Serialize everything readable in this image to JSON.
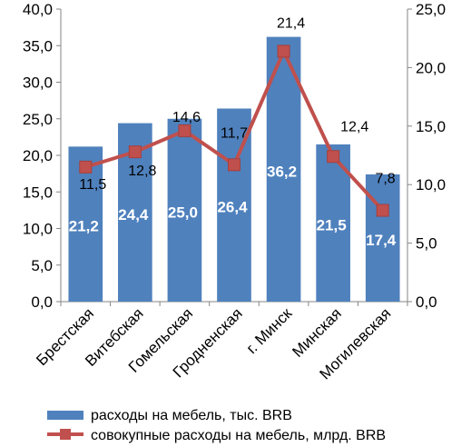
{
  "chart_data": {
    "type": "bar",
    "categories": [
      "Брестская",
      "Витебская",
      "Гомельская",
      "Гродненская",
      "г. Минск",
      "Минская",
      "Могилевская"
    ],
    "series": [
      {
        "name": "расходы на мебель, тыс. BRB",
        "type": "bar",
        "axis": "left",
        "color": "#4F81BD",
        "values": [
          21.2,
          24.4,
          25.0,
          26.4,
          36.2,
          21.5,
          17.4
        ],
        "labels": [
          "21,2",
          "24,4",
          "25,0",
          "26,4",
          "36,2",
          "21,5",
          "17,4"
        ]
      },
      {
        "name": "совокупные расходы на мебель, млрд. BRB",
        "type": "line",
        "axis": "right",
        "color": "#C0504D",
        "values": [
          11.5,
          12.8,
          14.6,
          11.7,
          21.4,
          12.4,
          7.8
        ],
        "labels": [
          "11,5",
          "12,8",
          "14,6",
          "11,7",
          "21,4",
          "12,4",
          "7,8"
        ]
      }
    ],
    "y_left": {
      "ylim": [
        0,
        40
      ],
      "ticks": [
        "0,0",
        "5,0",
        "10,0",
        "15,0",
        "20,0",
        "25,0",
        "30,0",
        "35,0",
        "40,0"
      ]
    },
    "y_right": {
      "ylim": [
        0,
        25
      ],
      "ticks": [
        "0,0",
        "5,0",
        "10,0",
        "15,0",
        "20,0",
        "25,0"
      ]
    },
    "grid": false,
    "legend_position": "bottom"
  }
}
